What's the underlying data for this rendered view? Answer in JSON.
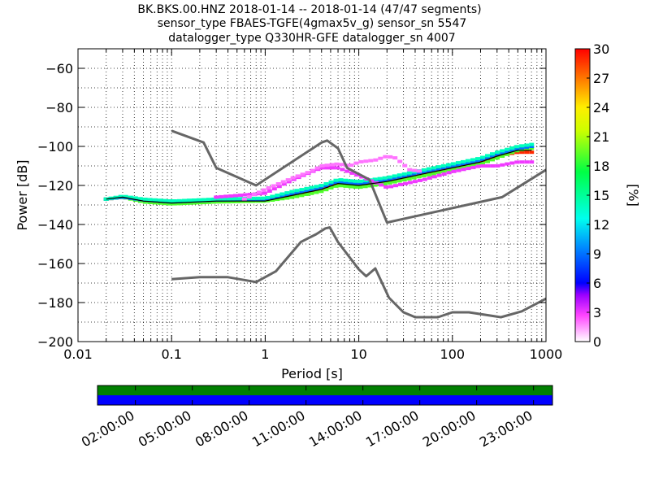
{
  "title": {
    "line1": "BK.BKS.00.HNZ   2018-01-14 -- 2018-01-14  (47/47 segments)",
    "line2": "sensor_type FBAES-TGFE(4gmax5v_g) sensor_sn 5547",
    "line3": "datalogger_type Q330HR-GFE datalogger_sn 4007"
  },
  "chart_data": [
    {
      "type": "heatmap",
      "title": "BK.BKS.00.HNZ   2018-01-14 -- 2018-01-14  (47/47 segments)",
      "xlabel": "Period [s]",
      "ylabel": "Power [dB]",
      "xscale": "log",
      "xlim": [
        0.01,
        1000
      ],
      "ylim": [
        -200,
        -50
      ],
      "x_ticks": [
        {
          "value": 0.01,
          "label": "0.01"
        },
        {
          "value": 0.1,
          "label": "0.1"
        },
        {
          "value": 1,
          "label": "1"
        },
        {
          "value": 10,
          "label": "10"
        },
        {
          "value": 100,
          "label": "100"
        },
        {
          "value": 1000,
          "label": "1000"
        }
      ],
      "y_ticks": [
        {
          "value": -60,
          "label": "−60"
        },
        {
          "value": -80,
          "label": "−80"
        },
        {
          "value": -100,
          "label": "−100"
        },
        {
          "value": -120,
          "label": "−120"
        },
        {
          "value": -140,
          "label": "−140"
        },
        {
          "value": -160,
          "label": "−160"
        },
        {
          "value": -180,
          "label": "−180"
        },
        {
          "value": -200,
          "label": "−200"
        }
      ],
      "grid": "dotted",
      "colorbar": {
        "label": "[%]",
        "range": [
          0,
          30
        ],
        "ticks": [
          {
            "value": 0,
            "label": "0"
          },
          {
            "value": 3,
            "label": "3"
          },
          {
            "value": 6,
            "label": "6"
          },
          {
            "value": 9,
            "label": "9"
          },
          {
            "value": 12,
            "label": "12"
          },
          {
            "value": 15,
            "label": "15"
          },
          {
            "value": 18,
            "label": "18"
          },
          {
            "value": 21,
            "label": "21"
          },
          {
            "value": 24,
            "label": "24"
          },
          {
            "value": 27,
            "label": "27"
          },
          {
            "value": 30,
            "label": "30"
          }
        ]
      },
      "reference_curves": [
        {
          "name": "",
          "points": [
            [
              0.1,
              -92
            ],
            [
              0.22,
              -98
            ],
            [
              0.3,
              -111
            ],
            [
              0.8,
              -120
            ],
            [
              4,
              -98
            ],
            [
              4.6,
              -97
            ],
            [
              6,
              -101
            ],
            [
              7.5,
              -111
            ],
            [
              13,
              -117
            ],
            [
              20,
              -139
            ],
            [
              340,
              -126
            ],
            [
              1000,
              -112
            ]
          ]
        },
        {
          "name": "",
          "points": [
            [
              0.1,
              -168
            ],
            [
              0.2,
              -167
            ],
            [
              0.4,
              -167
            ],
            [
              0.8,
              -169.5
            ],
            [
              1.3,
              -164
            ],
            [
              2.4,
              -149
            ],
            [
              3.5,
              -145
            ],
            [
              4.4,
              -142
            ],
            [
              4.9,
              -141.5
            ],
            [
              6,
              -149
            ],
            [
              10,
              -163
            ],
            [
              12,
              -166.5
            ],
            [
              15,
              -162.5
            ],
            [
              21,
              -177.5
            ],
            [
              30,
              -185
            ],
            [
              40,
              -187.5
            ],
            [
              70,
              -187.5
            ],
            [
              100,
              -185
            ],
            [
              150,
              -185
            ],
            [
              330,
              -187.5
            ],
            [
              550,
              -184.5
            ],
            [
              1000,
              -178
            ]
          ]
        }
      ],
      "mode_line": [
        [
          0.02,
          -127
        ],
        [
          0.03,
          -126
        ],
        [
          0.05,
          -128
        ],
        [
          0.1,
          -129
        ],
        [
          0.3,
          -128
        ],
        [
          1,
          -128
        ],
        [
          2,
          -125
        ],
        [
          4,
          -122
        ],
        [
          6,
          -119
        ],
        [
          10,
          -120
        ],
        [
          20,
          -118
        ],
        [
          50,
          -114
        ],
        [
          100,
          -111
        ],
        [
          200,
          -108
        ],
        [
          300,
          -105
        ],
        [
          500,
          -102
        ],
        [
          700,
          -102
        ]
      ],
      "probability_bands": [
        {
          "points": [
            [
              0.02,
              -127
            ],
            [
              0.03,
              -126
            ],
            [
              0.05,
              -128
            ],
            [
              0.1,
              -129
            ],
            [
              0.3,
              -128
            ],
            [
              1,
              -127.5
            ],
            [
              2,
              -125
            ],
            [
              4,
              -122
            ],
            [
              6,
              -119
            ],
            [
              10,
              -120
            ],
            [
              20,
              -118
            ],
            [
              50,
              -114
            ],
            [
              100,
              -111
            ],
            [
              200,
              -108
            ],
            [
              300,
              -105
            ],
            [
              500,
              -103
            ],
            [
              700,
              -103
            ]
          ],
          "percent": 29
        },
        {
          "points": [
            [
              0.02,
              -127
            ],
            [
              0.03,
              -126
            ],
            [
              0.05,
              -128.5
            ],
            [
              0.1,
              -129.5
            ],
            [
              0.3,
              -128.5
            ],
            [
              1,
              -128
            ],
            [
              2,
              -126
            ],
            [
              4,
              -123
            ],
            [
              6,
              -120
            ],
            [
              10,
              -121
            ],
            [
              20,
              -119
            ],
            [
              50,
              -115
            ],
            [
              100,
              -112
            ],
            [
              200,
              -109
            ],
            [
              300,
              -106
            ],
            [
              500,
              -102
            ],
            [
              700,
              -101
            ]
          ],
          "percent": 19
        },
        {
          "points": [
            [
              0.02,
              -127
            ],
            [
              0.03,
              -126
            ],
            [
              0.05,
              -127.5
            ],
            [
              0.1,
              -128.5
            ],
            [
              0.3,
              -127.5
            ],
            [
              1,
              -127
            ],
            [
              2,
              -124
            ],
            [
              4,
              -121
            ],
            [
              6,
              -118
            ],
            [
              10,
              -119
            ],
            [
              20,
              -117
            ],
            [
              50,
              -113
            ],
            [
              100,
              -110
            ],
            [
              200,
              -107
            ],
            [
              300,
              -104
            ],
            [
              500,
              -101
            ],
            [
              700,
              -100
            ]
          ],
          "percent": 9
        },
        {
          "points": [
            [
              0.02,
              -127
            ],
            [
              0.03,
              -125.5
            ],
            [
              0.05,
              -127
            ],
            [
              0.1,
              -128
            ],
            [
              0.3,
              -127
            ],
            [
              1,
              -126.5
            ],
            [
              2,
              -123
            ],
            [
              4,
              -120
            ],
            [
              6,
              -117
            ],
            [
              10,
              -118
            ],
            [
              20,
              -116
            ],
            [
              50,
              -112
            ],
            [
              100,
              -109
            ],
            [
              200,
              -106
            ],
            [
              300,
              -103
            ],
            [
              500,
              -100
            ],
            [
              700,
              -99
            ]
          ],
          "percent": 14
        },
        {
          "points": [
            [
              0.3,
              -126
            ],
            [
              1,
              -124
            ],
            [
              2,
              -117
            ],
            [
              4,
              -111
            ],
            [
              6,
              -111
            ],
            [
              10,
              -115
            ],
            [
              20,
              -121
            ],
            [
              50,
              -117
            ],
            [
              100,
              -113
            ],
            [
              200,
              -110
            ],
            [
              300,
              -110
            ],
            [
              500,
              -108
            ],
            [
              700,
              -108
            ]
          ],
          "percent": 3
        },
        {
          "points": [
            [
              0.6,
              -127
            ],
            [
              1,
              -122
            ],
            [
              2,
              -116
            ],
            [
              3,
              -113
            ],
            [
              4,
              -110
            ],
            [
              6,
              -109
            ],
            [
              8,
              -110
            ],
            [
              10,
              -108
            ],
            [
              15,
              -107
            ],
            [
              20,
              -105
            ],
            [
              25,
              -106
            ],
            [
              35,
              -112
            ],
            [
              50,
              -113
            ]
          ],
          "percent": 2
        }
      ]
    },
    {
      "type": "table",
      "name": "",
      "x_ticks": [
        "02:00:00",
        "05:00:00",
        "08:00:00",
        "11:00:00",
        "14:00:00",
        "17:00:00",
        "20:00:00",
        "23:00:00"
      ],
      "rows": [
        {
          "name": "",
          "color": "#008000",
          "coverage": [
            0,
            24
          ]
        },
        {
          "name": "",
          "color": "#0000ff",
          "coverage": [
            0,
            24
          ]
        }
      ],
      "tick_hours": [
        2,
        5,
        8,
        11,
        14,
        17,
        20,
        23
      ],
      "range_hours": [
        0,
        24
      ]
    }
  ]
}
